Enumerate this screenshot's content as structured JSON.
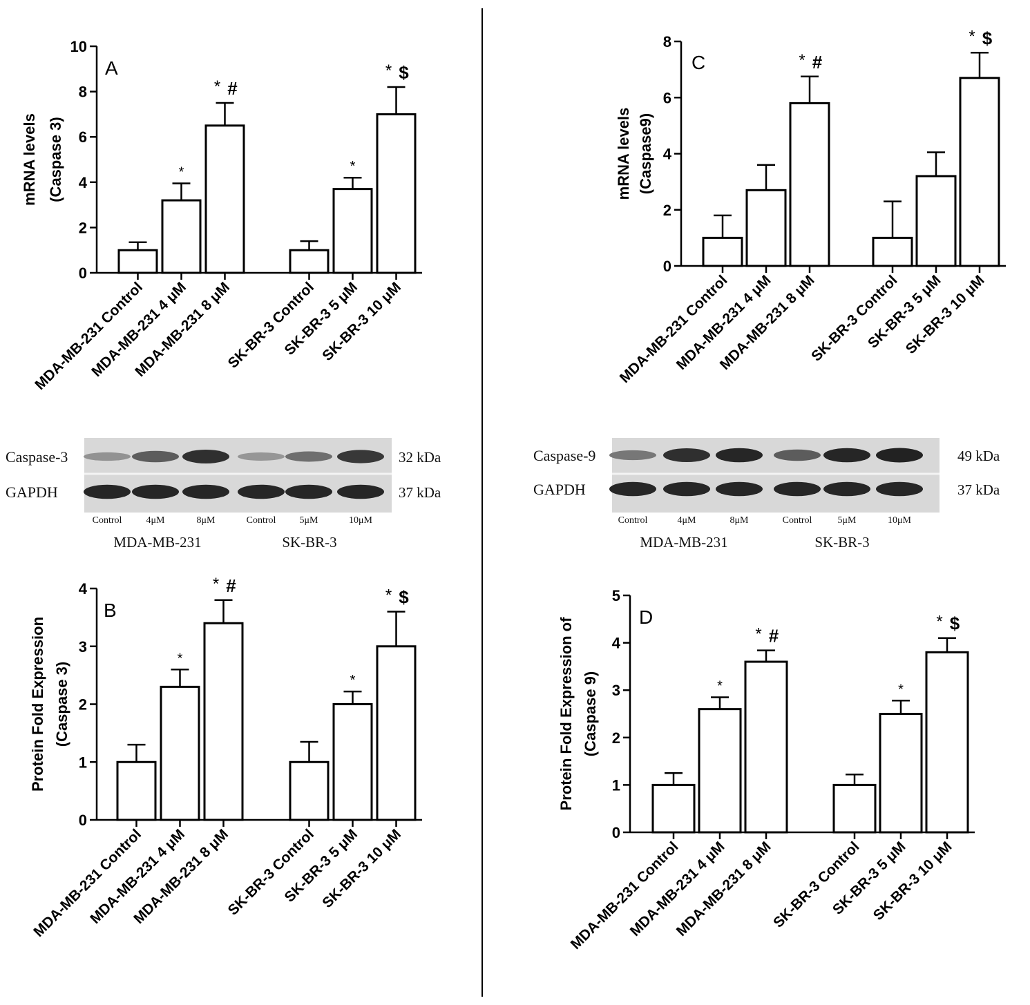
{
  "chart_data": [
    {
      "type": "bar",
      "panel_label": "A",
      "ylabel": [
        "mRNA levels",
        "(Caspase 3)"
      ],
      "categories": [
        "MDA-MB-231 Control",
        "MDA-MB-231 4 μM",
        "MDA-MB-231 8 μM",
        "SK-BR-3 Control",
        "SK-BR-3 5 μM",
        "SK-BR-3 10 μM"
      ],
      "values": [
        1.0,
        3.2,
        6.5,
        1.0,
        3.7,
        7.0
      ],
      "errors": [
        0.35,
        0.75,
        1.0,
        0.4,
        0.5,
        1.2
      ],
      "annotations": [
        [
          "",
          ""
        ],
        [
          "*",
          ""
        ],
        [
          "*",
          "#"
        ],
        [
          "",
          ""
        ],
        [
          "*",
          ""
        ],
        [
          "*",
          "$"
        ]
      ],
      "ylim": [
        0,
        10
      ],
      "yticks": [
        0,
        2,
        4,
        6,
        8,
        10
      ],
      "grid": false
    },
    {
      "type": "bar",
      "panel_label": "B",
      "ylabel": [
        "Protein Fold Expression",
        "(Caspase 3)"
      ],
      "categories": [
        "MDA-MB-231 Control",
        "MDA-MB-231 4 μM",
        "MDA-MB-231 8 μM",
        "SK-BR-3 Control",
        "SK-BR-3 5 μM",
        "SK-BR-3 10 μM"
      ],
      "values": [
        1.0,
        2.3,
        3.4,
        1.0,
        2.0,
        3.0
      ],
      "errors": [
        0.3,
        0.3,
        0.4,
        0.35,
        0.22,
        0.6
      ],
      "annotations": [
        [
          "",
          ""
        ],
        [
          "*",
          ""
        ],
        [
          "*",
          "#"
        ],
        [
          "",
          ""
        ],
        [
          "*",
          ""
        ],
        [
          "*",
          "$"
        ]
      ],
      "ylim": [
        0,
        4
      ],
      "yticks": [
        0,
        1,
        2,
        3,
        4
      ],
      "grid": false
    },
    {
      "type": "bar",
      "panel_label": "C",
      "ylabel": [
        "mRNA levels",
        "(Caspase9)"
      ],
      "categories": [
        "MDA-MB-231 Control",
        "MDA-MB-231 4 μM",
        "MDA-MB-231 8 μM",
        "SK-BR-3 Control",
        "SK-BR-3 5 μM",
        "SK-BR-3 10 μM"
      ],
      "values": [
        1.0,
        2.7,
        5.8,
        1.0,
        3.2,
        6.7
      ],
      "errors": [
        0.8,
        0.9,
        0.95,
        1.3,
        0.85,
        0.9
      ],
      "annotations": [
        [
          "",
          ""
        ],
        [
          "",
          ""
        ],
        [
          "*",
          "#"
        ],
        [
          "",
          ""
        ],
        [
          "",
          ""
        ],
        [
          "*",
          "$"
        ]
      ],
      "ylim": [
        0,
        8
      ],
      "yticks": [
        0,
        2,
        4,
        6,
        8
      ],
      "grid": false
    },
    {
      "type": "bar",
      "panel_label": "D",
      "ylabel": [
        "Protein Fold Expression of",
        "(Caspase 9)"
      ],
      "categories": [
        "MDA-MB-231 Control",
        "MDA-MB-231 4 μM",
        "MDA-MB-231 8 μM",
        "SK-BR-3 Control",
        "SK-BR-3 5 μM",
        "SK-BR-3 10 μM"
      ],
      "values": [
        1.0,
        2.6,
        3.6,
        1.0,
        2.5,
        3.8
      ],
      "errors": [
        0.25,
        0.25,
        0.24,
        0.22,
        0.28,
        0.3
      ],
      "annotations": [
        [
          "",
          ""
        ],
        [
          "*",
          ""
        ],
        [
          "*",
          "#"
        ],
        [
          "",
          ""
        ],
        [
          "*",
          ""
        ],
        [
          "*",
          "$"
        ]
      ],
      "ylim": [
        0,
        5
      ],
      "yticks": [
        0,
        1,
        2,
        3,
        4,
        5
      ],
      "grid": false
    }
  ],
  "blots": [
    {
      "rows": [
        {
          "name": "Caspase-3",
          "kda": "32 kDa"
        },
        {
          "name": "GAPDH",
          "kda": "37 kDa"
        }
      ],
      "lanes": [
        "Control",
        "4μM",
        "8μM",
        "Control",
        "5μM",
        "10μM"
      ],
      "band_intensity": [
        [
          0.3,
          0.6,
          0.85,
          0.28,
          0.5,
          0.8
        ],
        [
          0.9,
          0.9,
          0.9,
          0.9,
          0.9,
          0.9
        ]
      ],
      "groups": [
        "MDA-MB-231",
        "SK-BR-3"
      ]
    },
    {
      "rows": [
        {
          "name": "Caspase-9",
          "kda": "49 kDa"
        },
        {
          "name": "GAPDH",
          "kda": "37 kDa"
        }
      ],
      "lanes": [
        "Control",
        "4μM",
        "8μM",
        "Control",
        "5μM",
        "10μM"
      ],
      "band_intensity": [
        [
          0.45,
          0.85,
          0.9,
          0.6,
          0.9,
          0.92
        ],
        [
          0.9,
          0.9,
          0.9,
          0.9,
          0.9,
          0.9
        ]
      ],
      "groups": [
        "MDA-MB-231",
        "SK-BR-3"
      ]
    }
  ]
}
